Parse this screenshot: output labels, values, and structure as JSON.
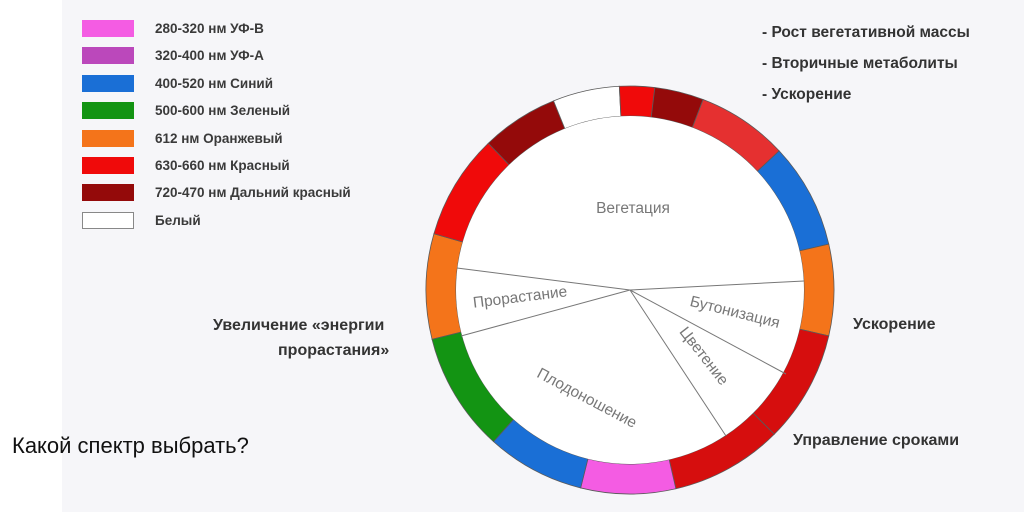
{
  "question": "Какой спектр выбрать?",
  "legend": [
    {
      "label": "280-320 нм УФ-В",
      "color": "#f45ce3"
    },
    {
      "label": "320-400 нм УФ-А",
      "color": "#bb48bb"
    },
    {
      "label": "400-520 нм Синий",
      "color": "#1a6fd6"
    },
    {
      "label": "500-600 нм Зеленый",
      "color": "#139413"
    },
    {
      "label": "612 нм Оранжевый",
      "color": "#f4741a"
    },
    {
      "label": "630-660 нм Красный",
      "color": "#f00a0a"
    },
    {
      "label": "720-470 нм Дальний красный",
      "color": "#940a0a"
    },
    {
      "label": "Белый",
      "color": "#ffffff"
    }
  ],
  "effects_top": [
    "- Рост вегетативной массы",
    "- Вторичные метаболиты",
    "- Ускорение"
  ],
  "labels": {
    "germination_energy_1": "Увеличение «энергии",
    "germination_energy_2": "прорастания»",
    "acceleration": "Ускорение",
    "timing": "Управление сроками"
  },
  "stages": {
    "vegetation": "Вегетация",
    "germination": "Прорастание",
    "budding": "Бутонизация",
    "flowering": "Цветение",
    "fruiting": "Плодоношение"
  },
  "ring": [
    {
      "color": "#f4741a"
    },
    {
      "color": "#f00a0a"
    },
    {
      "color": "#940a0a"
    },
    {
      "color": "#ffffff"
    },
    {
      "color": "#f00a0a"
    },
    {
      "color": "#940a0a"
    },
    {
      "color": "#e53030"
    },
    {
      "color": "#1a6fd6"
    },
    {
      "color": "#f4741a"
    },
    {
      "color": "#d60e0e"
    },
    {
      "color": "#d60e0e"
    },
    {
      "color": "#f45ce3"
    },
    {
      "color": "#1a6fd6"
    },
    {
      "color": "#139413"
    }
  ]
}
